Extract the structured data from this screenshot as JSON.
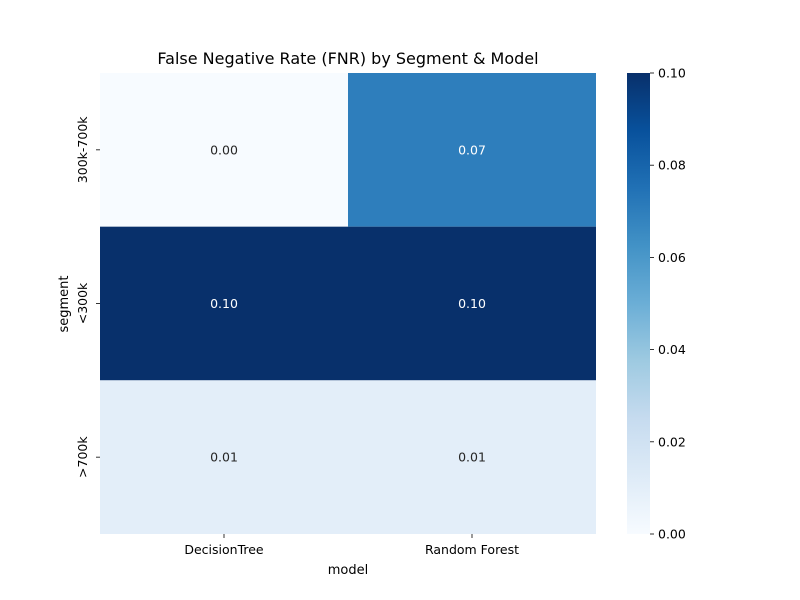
{
  "chart_data": {
    "type": "heatmap",
    "title": "False Negative Rate (FNR) by Segment & Model",
    "xlabel": "model",
    "ylabel": "segment",
    "x_categories": [
      "DecisionTree",
      "Random Forest"
    ],
    "y_categories": [
      "300k-700k",
      "<300k",
      ">700k"
    ],
    "values": [
      [
        0.0,
        0.07
      ],
      [
        0.1,
        0.1
      ],
      [
        0.01,
        0.01
      ]
    ],
    "annotations": [
      [
        "0.00",
        "0.07"
      ],
      [
        "0.10",
        "0.10"
      ],
      [
        "0.01",
        "0.01"
      ]
    ],
    "colorbar": {
      "range": [
        0.0,
        0.1
      ],
      "ticks": [
        0.0,
        0.02,
        0.04,
        0.06,
        0.08,
        0.1
      ],
      "tick_labels": [
        "0.00",
        "0.02",
        "0.04",
        "0.06",
        "0.08",
        "0.10"
      ]
    },
    "colormap": "Blues"
  }
}
